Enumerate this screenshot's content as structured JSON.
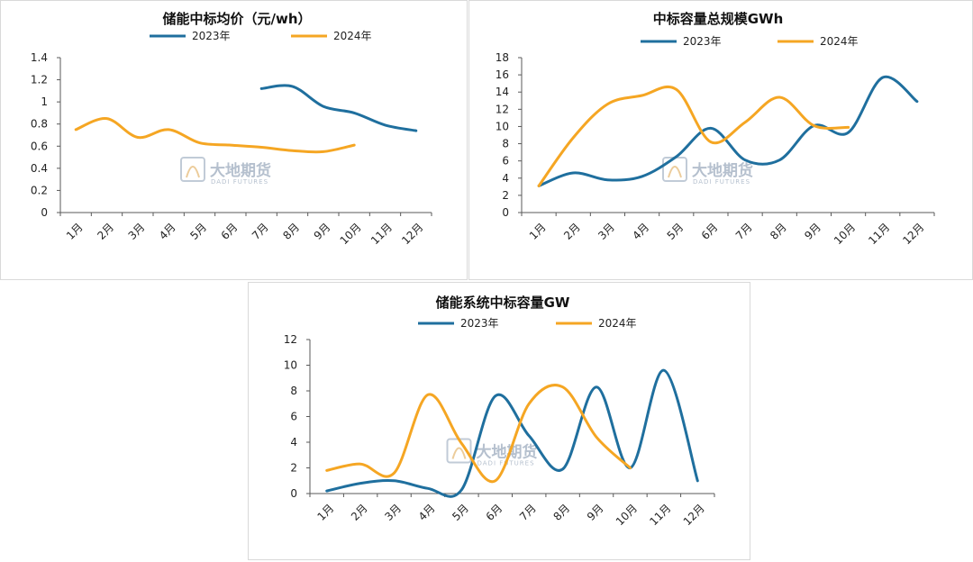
{
  "colors": {
    "y2023": "#1f6f9e",
    "y2024": "#f5a623",
    "axis": "#595959"
  },
  "watermark": {
    "text": "大地期货",
    "sub": "DADI FUTURES"
  },
  "chart_data": [
    {
      "type": "line",
      "title": "储能中标均价（元/wh）",
      "categories": [
        "1月",
        "2月",
        "3月",
        "4月",
        "5月",
        "6月",
        "7月",
        "8月",
        "9月",
        "10月",
        "11月",
        "12月"
      ],
      "ylim": [
        0,
        1.4
      ],
      "yticks": [
        "0",
        "0.2",
        "0.4",
        "0.6",
        "0.8",
        "1",
        "1.2",
        "1.4"
      ],
      "grid": false,
      "legend": "top",
      "series": [
        {
          "name": "2023年",
          "color": "#1f6f9e",
          "values": [
            null,
            null,
            null,
            null,
            null,
            null,
            1.12,
            1.14,
            0.96,
            0.9,
            0.79,
            0.74
          ]
        },
        {
          "name": "2024年",
          "color": "#f5a623",
          "values": [
            0.75,
            0.85,
            0.68,
            0.75,
            0.63,
            0.61,
            0.59,
            0.56,
            0.55,
            0.61,
            null,
            null
          ]
        }
      ]
    },
    {
      "type": "line",
      "title": "中标容量总规模GWh",
      "categories": [
        "1月",
        "2月",
        "3月",
        "4月",
        "5月",
        "6月",
        "7月",
        "8月",
        "9月",
        "10月",
        "11月",
        "12月"
      ],
      "ylim": [
        0,
        18
      ],
      "yticks": [
        "0",
        "2",
        "4",
        "6",
        "8",
        "10",
        "12",
        "14",
        "16",
        "18"
      ],
      "grid": false,
      "legend": "top",
      "series": [
        {
          "name": "2023年",
          "color": "#1f6f9e",
          "values": [
            3.1,
            4.6,
            3.8,
            4.2,
            6.5,
            9.8,
            6.1,
            6.1,
            10.1,
            9.3,
            15.7,
            12.9
          ]
        },
        {
          "name": "2024年",
          "color": "#f5a623",
          "values": [
            3.1,
            8.7,
            12.6,
            13.6,
            14.3,
            8.2,
            10.5,
            13.4,
            10.1,
            9.9,
            null,
            null
          ]
        }
      ]
    },
    {
      "type": "line",
      "title": "储能系统中标容量GW",
      "categories": [
        "1月",
        "2月",
        "3月",
        "4月",
        "5月",
        "6月",
        "7月",
        "8月",
        "9月",
        "10月",
        "11月",
        "12月"
      ],
      "ylim": [
        0,
        12
      ],
      "yticks": [
        "0",
        "2",
        "4",
        "6",
        "8",
        "10",
        "12"
      ],
      "grid": false,
      "legend": "top",
      "series": [
        {
          "name": "2023年",
          "color": "#1f6f9e",
          "values": [
            0.2,
            0.8,
            1.0,
            0.4,
            0.3,
            7.6,
            4.5,
            1.9,
            8.3,
            2.0,
            9.6,
            1.0
          ]
        },
        {
          "name": "2024年",
          "color": "#f5a623",
          "values": [
            1.8,
            2.3,
            1.6,
            7.7,
            3.9,
            1.0,
            7.0,
            8.3,
            4.4,
            2.0,
            null,
            null
          ]
        }
      ]
    }
  ]
}
